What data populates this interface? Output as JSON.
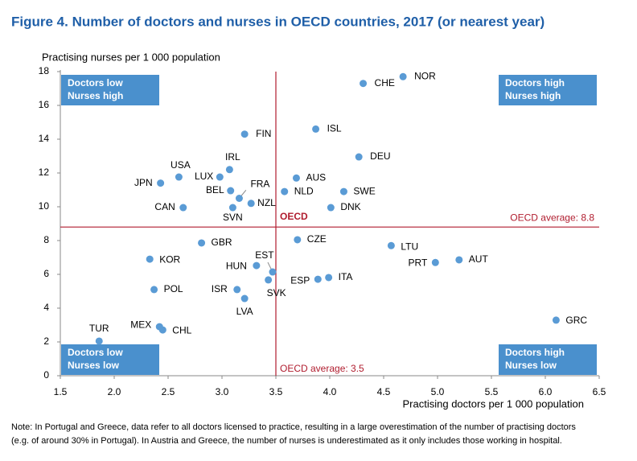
{
  "chart_data": {
    "type": "scatter",
    "title": "Figure 4. Number of doctors and nurses in OECD countries, 2017 (or nearest year)",
    "y_label": "Practising nurses per 1 000 population",
    "x_label": "Practising doctors per 1 000 population",
    "note": [
      "Note: In Portugal and Greece, data refer to all doctors licensed to practice, resulting in a large overestimation of the number of practising doctors",
      "(e.g. of around 30% in Portugal). In Austria and Greece, the number of nurses is underestimated as it only includes those working in hospital."
    ],
    "xlim": [
      1.5,
      6.5
    ],
    "xticks": [
      1.5,
      {
        "value": 2,
        "label": "2.0"
      },
      2.5,
      {
        "value": 3,
        "label": "3.0"
      },
      3.5,
      {
        "value": 4,
        "label": "4.0"
      },
      4.5,
      {
        "value": 5,
        "label": "5.0"
      },
      5.5,
      {
        "value": 6,
        "label": "6.0"
      },
      6.5
    ],
    "ylim": [
      0,
      18
    ],
    "yticks": [
      0,
      2,
      4,
      6,
      8,
      10,
      12,
      14,
      16,
      18
    ],
    "series": [
      {
        "color": "#5a9bd5",
        "labels": [
          "NOR",
          "CHE",
          "FIN",
          "ISL",
          "DEU",
          "IRL",
          "USA",
          "LUX",
          "AUS",
          "JPN",
          "FRA",
          "BEL",
          "NLD",
          "SWE",
          "NZL",
          "CAN",
          "SVN",
          "DNK",
          "CZE",
          "GBR",
          "LTU",
          "PRT",
          "AUT",
          "KOR",
          "HUN",
          "EST",
          "ESP",
          "ITA",
          "SVK",
          "POL",
          "ISR",
          "LVA",
          "GRC",
          "MEX",
          "CHL",
          "TUR"
        ],
        "x": [
          4.68,
          4.31,
          3.21,
          3.87,
          4.27,
          3.07,
          2.6,
          2.98,
          3.69,
          2.43,
          3.16,
          3.08,
          3.58,
          4.13,
          3.27,
          2.64,
          3.1,
          4.01,
          3.7,
          2.81,
          4.57,
          4.98,
          5.2,
          2.33,
          3.32,
          3.47,
          3.89,
          3.99,
          3.43,
          2.37,
          3.14,
          3.21,
          6.1,
          2.42,
          2.45,
          1.86
        ],
        "values": [
          17.7,
          17.3,
          14.3,
          14.6,
          12.95,
          12.2,
          11.76,
          11.76,
          11.7,
          11.4,
          10.5,
          10.95,
          10.9,
          10.9,
          10.2,
          9.95,
          9.95,
          9.95,
          8.05,
          7.86,
          7.7,
          6.7,
          6.86,
          6.9,
          6.52,
          6.14,
          5.71,
          5.81,
          5.67,
          5.1,
          5.1,
          4.57,
          3.29,
          2.9,
          2.71,
          2.05
        ]
      }
    ],
    "hlines": [
      {
        "value": 8.8,
        "label": "OECD average: 8.8"
      }
    ],
    "vlines": [
      {
        "value": 3.5,
        "label": "OECD average: 3.5",
        "tag": "OECD"
      }
    ],
    "quadrants": [
      {
        "corner": "top-left",
        "lines": [
          "Doctors low",
          "Nurses high"
        ]
      },
      {
        "corner": "top-right",
        "lines": [
          "Doctors high",
          "Nurses high"
        ]
      },
      {
        "corner": "bottom-left",
        "lines": [
          "Doctors low",
          "Nurses low"
        ]
      },
      {
        "corner": "bottom-right",
        "lines": [
          "Doctors high",
          "Nurses low"
        ]
      }
    ]
  }
}
